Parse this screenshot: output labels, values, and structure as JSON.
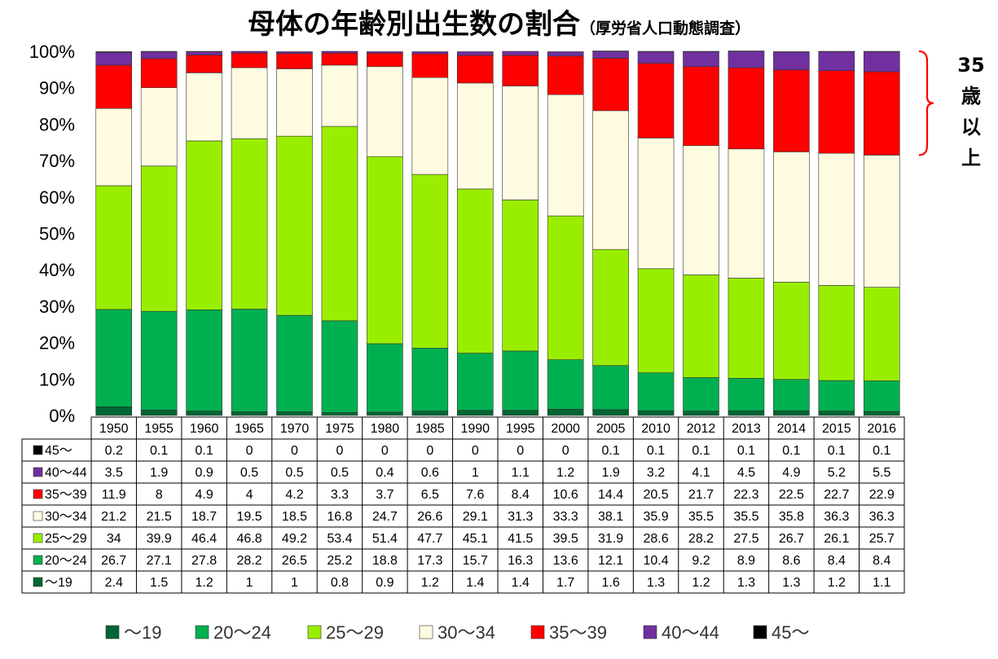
{
  "title": "母体の年齢別出生数の割合",
  "subtitle": "（厚労省人口動態調査）",
  "annotation": [
    "35",
    "歳",
    "以",
    "上"
  ],
  "chart_data": {
    "type": "bar",
    "stacked": true,
    "normalized": true,
    "y_tick_labels": [
      "0%",
      "10%",
      "20%",
      "30%",
      "40%",
      "50%",
      "60%",
      "70%",
      "80%",
      "90%",
      "100%"
    ],
    "ylim": [
      0,
      100
    ],
    "categories": [
      "1950",
      "1955",
      "1960",
      "1965",
      "1970",
      "1975",
      "1980",
      "1985",
      "1990",
      "1995",
      "2000",
      "2005",
      "2010",
      "2012",
      "2013",
      "2014",
      "2015",
      "2016"
    ],
    "series": [
      {
        "name": "〜19",
        "color": "#006633",
        "values": [
          2.4,
          1.5,
          1.2,
          1,
          1,
          0.8,
          0.9,
          1.2,
          1.4,
          1.4,
          1.7,
          1.6,
          1.3,
          1.2,
          1.3,
          1.3,
          1.2,
          1.1
        ]
      },
      {
        "name": "20〜24",
        "color": "#00B050",
        "values": [
          26.7,
          27.1,
          27.8,
          28.2,
          26.5,
          25.2,
          18.8,
          17.3,
          15.7,
          16.3,
          13.6,
          12.1,
          10.4,
          9.2,
          8.9,
          8.6,
          8.4,
          8.4
        ]
      },
      {
        "name": "25〜29",
        "color": "#99EE00",
        "values": [
          34,
          39.9,
          46.4,
          46.8,
          49.2,
          53.4,
          51.4,
          47.7,
          45.1,
          41.5,
          39.5,
          31.9,
          28.6,
          28.2,
          27.5,
          26.7,
          26.1,
          25.7
        ]
      },
      {
        "name": "30〜34",
        "color": "#FFFBE0",
        "values": [
          21.2,
          21.5,
          18.7,
          19.5,
          18.5,
          16.8,
          24.7,
          26.6,
          29.1,
          31.3,
          33.3,
          38.1,
          35.9,
          35.5,
          35.5,
          35.8,
          36.3,
          36.3
        ]
      },
      {
        "name": "35〜39",
        "color": "#FF0000",
        "values": [
          11.9,
          8,
          4.9,
          4,
          4.2,
          3.3,
          3.7,
          6.5,
          7.6,
          8.4,
          10.6,
          14.4,
          20.5,
          21.7,
          22.3,
          22.5,
          22.7,
          22.9
        ]
      },
      {
        "name": "40〜44",
        "color": "#7030A0",
        "values": [
          3.5,
          1.9,
          0.9,
          0.5,
          0.5,
          0.5,
          0.4,
          0.6,
          1,
          1.1,
          1.2,
          1.9,
          3.2,
          4.1,
          4.5,
          4.9,
          5.2,
          5.5
        ]
      },
      {
        "name": "45〜",
        "color": "#000000",
        "values": [
          0.2,
          0.1,
          0.1,
          0,
          0,
          0,
          0,
          0,
          0,
          0,
          0,
          0.1,
          0.1,
          0.1,
          0.1,
          0.1,
          0.1,
          0.1
        ]
      }
    ],
    "table_row_order": [
      "45〜",
      "40〜44",
      "35〜39",
      "30〜34",
      "25〜29",
      "20〜24",
      "〜19"
    ],
    "legend_position": "bottom",
    "grid": false
  }
}
